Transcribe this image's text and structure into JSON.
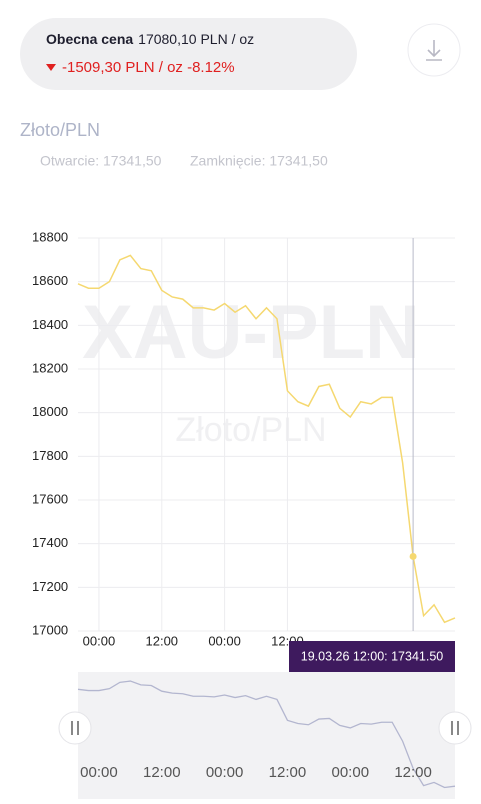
{
  "header": {
    "label": "Obecna cena",
    "price": "17080,10 PLN / oz",
    "change": "-1509,30 PLN / oz -8.12%"
  },
  "instrument": {
    "title": "Złoto/PLN",
    "open": "Otwarcie: 17341,50",
    "close": "Zamknięcie: 17341,50"
  },
  "chart_data": {
    "type": "line",
    "watermark": "XAU-PLN",
    "watermark_subtitle": "Złoto/PLN",
    "x": [
      -4,
      -2,
      0,
      2,
      4,
      6,
      8,
      10,
      12,
      14,
      16,
      18,
      20,
      22,
      24,
      26,
      28,
      30,
      32,
      34,
      36,
      38,
      40,
      42,
      44,
      46,
      48,
      50,
      52,
      54,
      56,
      58,
      60,
      62,
      64,
      66,
      68
    ],
    "series": [
      {
        "color": "#f5d870",
        "values": [
          18590,
          18570,
          18570,
          18600,
          18700,
          18720,
          18660,
          18650,
          18560,
          18530,
          18520,
          18480,
          18480,
          18470,
          18500,
          18460,
          18490,
          18430,
          18480,
          18430,
          18100,
          18050,
          18030,
          18120,
          18130,
          18020,
          17980,
          18050,
          18040,
          18070,
          18070,
          17770,
          17341.5,
          17070,
          17120,
          17040,
          17060
        ]
      }
    ],
    "xlim": [
      -4,
      68
    ],
    "ylim": [
      17000,
      18800
    ],
    "xticks": [
      {
        "value": 0,
        "label": "00:00"
      },
      {
        "value": 12,
        "label": "12:00"
      },
      {
        "value": 24,
        "label": "00:00"
      },
      {
        "value": 36,
        "label": "12:00"
      }
    ],
    "yticks": [
      17000,
      17200,
      17400,
      17600,
      17800,
      18000,
      18200,
      18400,
      18600,
      18800
    ],
    "grid": true,
    "tooltip": {
      "x": 60,
      "label": "19.03.26 12:00: 17341.50"
    }
  },
  "navigator": {
    "color": "#b3b6cf",
    "xticks": [
      {
        "value": 0,
        "label": "00:00"
      },
      {
        "value": 12,
        "label": "12:00"
      },
      {
        "value": 24,
        "label": "00:00"
      },
      {
        "value": 36,
        "label": "12:00"
      },
      {
        "value": 48,
        "label": "00:00"
      },
      {
        "value": 60,
        "label": "12:00"
      }
    ]
  }
}
